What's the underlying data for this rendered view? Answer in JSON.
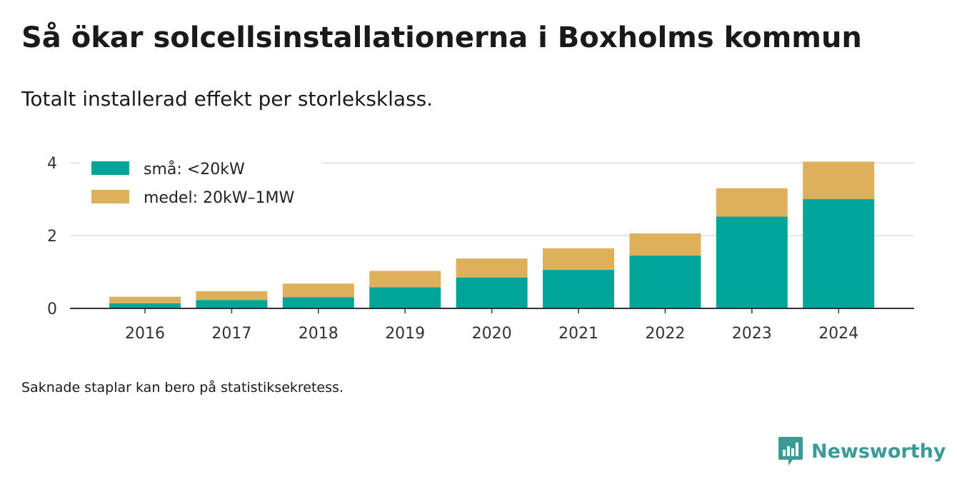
{
  "title": "Så ökar solcellsinstallationerna i Boxholms kommun",
  "subtitle": "Totalt installerad effekt per storleksklass.",
  "footnote": "Saknade staplar kan bero på statistiksekretess.",
  "brand": {
    "name": "Newsworthy",
    "icon": "newsworthy-logo-icon",
    "color": "#3d9b97"
  },
  "chart_data": {
    "type": "bar",
    "stacked": true,
    "categories": [
      "2016",
      "2017",
      "2018",
      "2019",
      "2020",
      "2021",
      "2022",
      "2023",
      "2024"
    ],
    "series": [
      {
        "name": "små: <20kW",
        "color": "#00a59a",
        "values": [
          0.14,
          0.23,
          0.31,
          0.58,
          0.85,
          1.06,
          1.45,
          2.52,
          3.0
        ]
      },
      {
        "name": "medel: 20kW–1MW",
        "color": "#dfb05c",
        "values": [
          0.18,
          0.24,
          0.37,
          0.45,
          0.52,
          0.59,
          0.61,
          0.78,
          1.03
        ]
      }
    ],
    "yticks": [
      0,
      2,
      4
    ],
    "ylim": [
      0,
      4.1
    ],
    "grid": true,
    "legend": "top-left",
    "xlabel": "",
    "ylabel": ""
  }
}
